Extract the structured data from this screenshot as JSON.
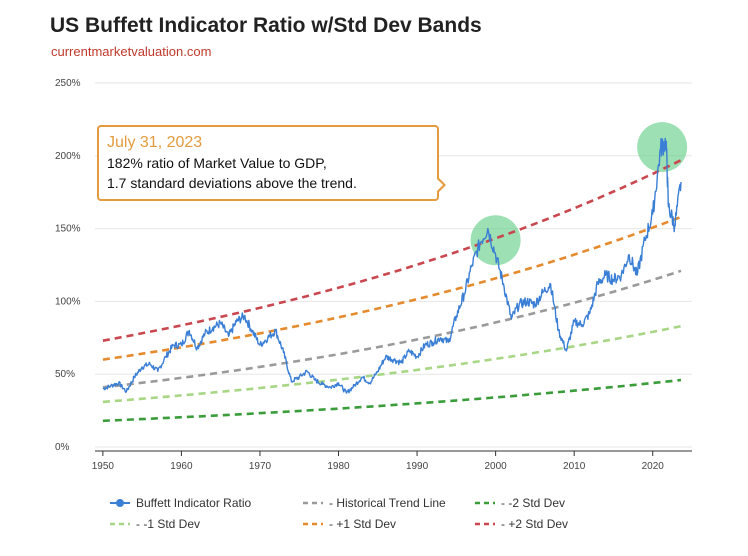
{
  "header": {
    "title": "US Buffett Indicator Ratio w/Std Dev Bands",
    "subtitle": "currentmarketvaluation.com"
  },
  "callout": {
    "date": "July 31, 2023",
    "line1": "182% ratio of Market Value to GDP,",
    "line2": "1.7 standard deviations above the trend."
  },
  "colors": {
    "ratio": "#3a7fd5",
    "trend": "#9a9a9a",
    "minus2": "#3a9d3a",
    "minus1": "#a7d684",
    "plus1": "#e68a2e",
    "plus2": "#c9474f",
    "highlight": "#69d08a"
  },
  "chart_data": {
    "type": "line",
    "title": "US Buffett Indicator Ratio w/Std Dev Bands",
    "xlabel": "",
    "ylabel": "",
    "xlim": [
      1949,
      2025
    ],
    "ylim": [
      0,
      250
    ],
    "x_ticks": [
      1950,
      1960,
      1970,
      1980,
      1990,
      2000,
      2010,
      2020
    ],
    "x_tick_labels": [
      "1950",
      "1960",
      "1970",
      "1980",
      "1990",
      "2000",
      "2010",
      "2020"
    ],
    "y_ticks": [
      0,
      50,
      100,
      150,
      200,
      250
    ],
    "y_tick_labels": [
      "0%",
      "50%",
      "100%",
      "150%",
      "200%",
      "250%"
    ],
    "grid": true,
    "legend_position": "bottom",
    "bands": [
      {
        "name": "- Historical Trend Line",
        "color_key": "trend",
        "x": [
          1950,
          2023.6
        ],
        "y": [
          41,
          121
        ]
      },
      {
        "name": "-2 Std Dev",
        "color_key": "minus2",
        "x": [
          1950,
          2023.6
        ],
        "y": [
          18,
          46
        ]
      },
      {
        "name": "-1 Std Dev",
        "color_key": "minus1",
        "x": [
          1950,
          2023.6
        ],
        "y": [
          31,
          83
        ]
      },
      {
        "name": "+1 Std Dev",
        "color_key": "plus1",
        "x": [
          1950,
          2023.6
        ],
        "y": [
          60,
          158
        ]
      },
      {
        "name": "+2 Std Dev",
        "color_key": "plus2",
        "x": [
          1950,
          2023.6
        ],
        "y": [
          73,
          197
        ]
      }
    ],
    "series": [
      {
        "name": "Buffett Indicator Ratio",
        "color_key": "ratio",
        "x": [
          1950,
          1951,
          1952,
          1953,
          1954,
          1955,
          1956,
          1957,
          1958,
          1959,
          1960,
          1961,
          1962,
          1963,
          1964,
          1965,
          1966,
          1967,
          1968,
          1969,
          1970,
          1971,
          1972,
          1973,
          1974,
          1975,
          1976,
          1977,
          1978,
          1979,
          1980,
          1981,
          1982,
          1983,
          1984,
          1985,
          1986,
          1987,
          1988,
          1989,
          1990,
          1991,
          1992,
          1993,
          1994,
          1995,
          1996,
          1997,
          1998,
          1999,
          2000,
          2001,
          2002,
          2003,
          2004,
          2005,
          2006,
          2007,
          2008,
          2009,
          2010,
          2011,
          2012,
          2013,
          2014,
          2015,
          2016,
          2017,
          2018,
          2019,
          2020,
          2021,
          2021.7,
          2022,
          2022.8,
          2023.6
        ],
        "y": [
          40,
          42,
          44,
          38,
          48,
          55,
          57,
          52,
          62,
          70,
          70,
          80,
          68,
          78,
          82,
          85,
          76,
          86,
          90,
          80,
          70,
          75,
          80,
          65,
          45,
          48,
          52,
          46,
          43,
          41,
          44,
          37,
          42,
          48,
          44,
          52,
          62,
          60,
          58,
          66,
          62,
          70,
          72,
          75,
          72,
          90,
          105,
          125,
          140,
          150,
          132,
          112,
          88,
          98,
          100,
          98,
          106,
          112,
          80,
          66,
          86,
          84,
          92,
          112,
          118,
          115,
          118,
          132,
          118,
          142,
          160,
          205,
          210,
          165,
          152,
          182
        ]
      }
    ],
    "annotations": [
      {
        "text": "July 31, 2023",
        "x": 2023.6,
        "y": 182
      },
      {
        "type": "highlight",
        "x": 2000,
        "y": 142
      },
      {
        "type": "highlight",
        "x": 2021.2,
        "y": 206
      }
    ]
  },
  "legend": [
    {
      "label": "Buffett Indicator Ratio",
      "color_key": "ratio",
      "style": "marker"
    },
    {
      "label": "- Historical Trend Line",
      "color_key": "trend",
      "style": "dash"
    },
    {
      "label": "- -2 Std Dev",
      "color_key": "minus2",
      "style": "dash"
    },
    {
      "label": "- -1 Std Dev",
      "color_key": "minus1",
      "style": "dash"
    },
    {
      "label": "- +1 Std Dev",
      "color_key": "plus1",
      "style": "dash"
    },
    {
      "label": "- +2 Std Dev",
      "color_key": "plus2",
      "style": "dash"
    }
  ]
}
